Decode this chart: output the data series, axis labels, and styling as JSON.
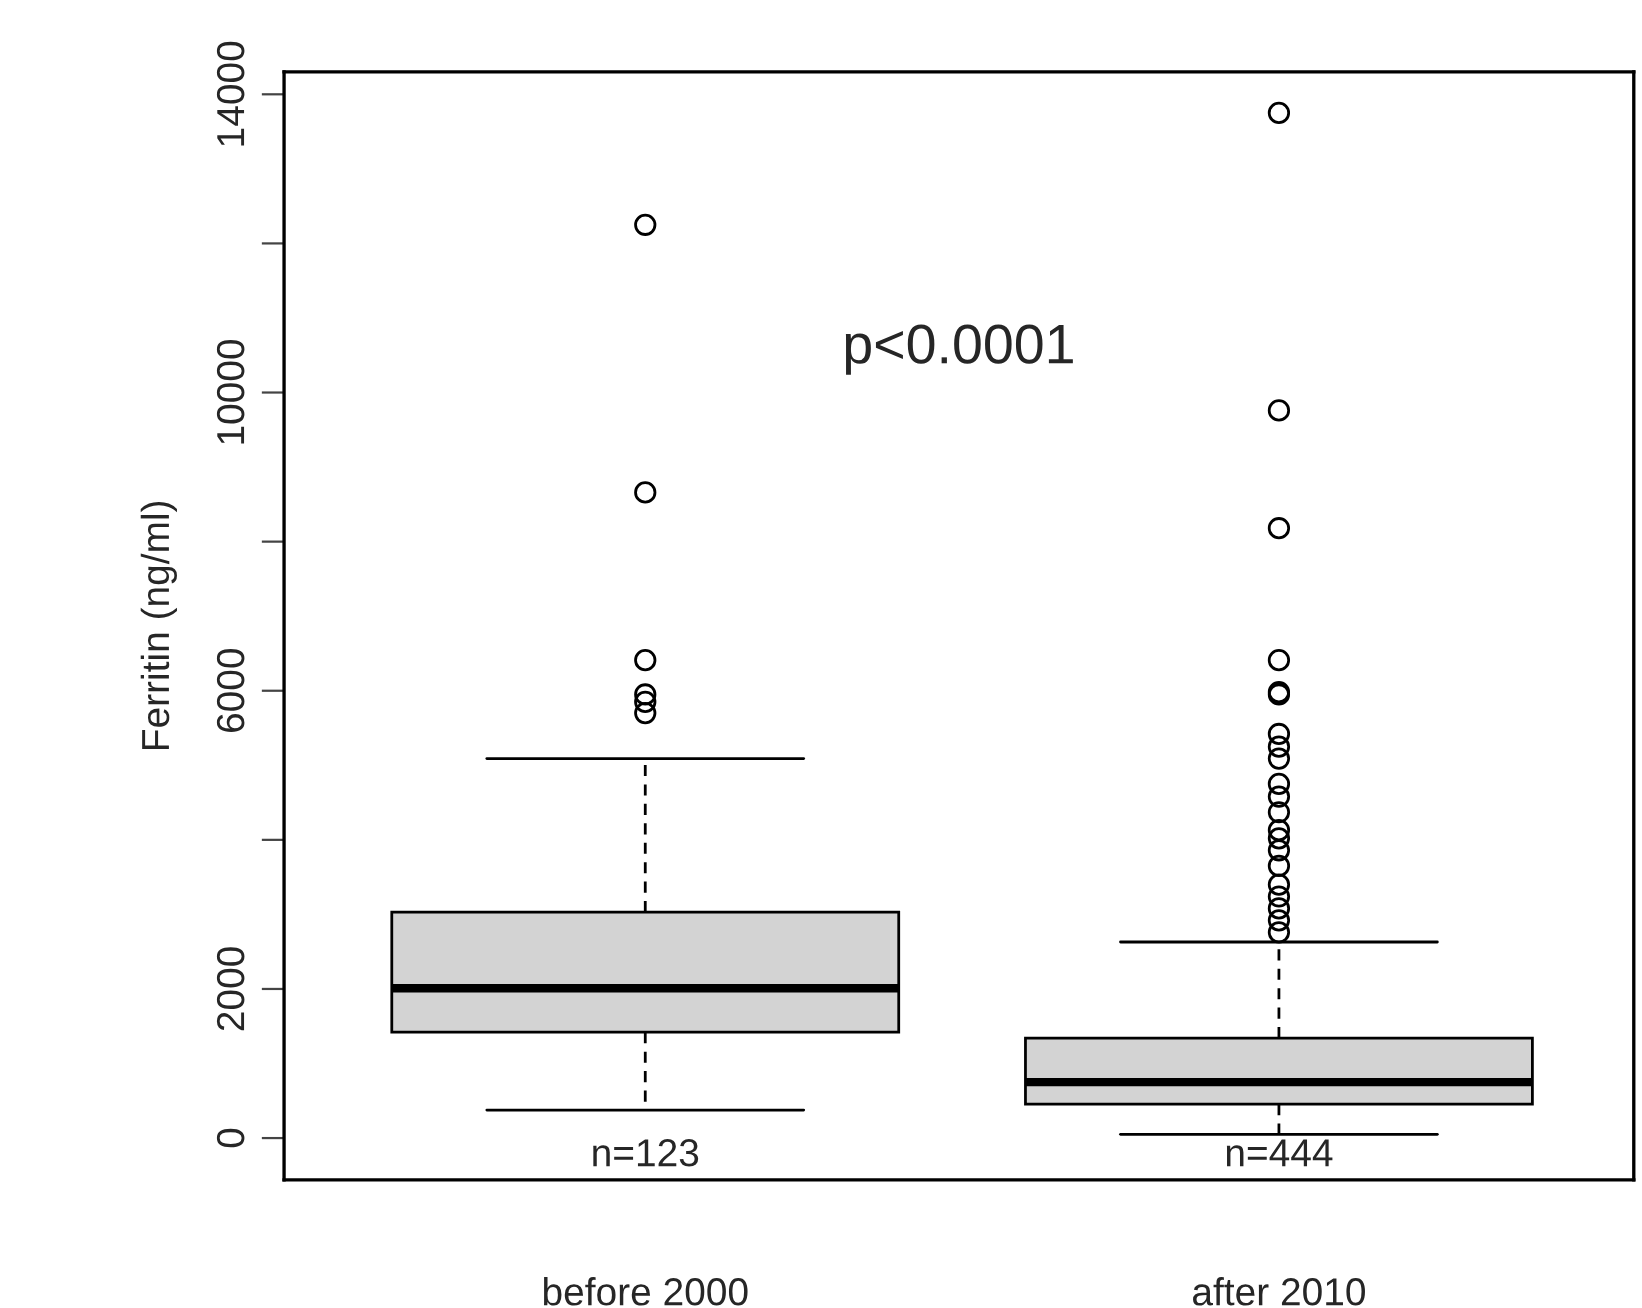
{
  "chart_data": {
    "type": "box",
    "ylabel": "Ferritin (ng/ml)",
    "categories": [
      "before 2000",
      "after 2010"
    ],
    "boxes": [
      {
        "low": 375,
        "q1": 1420,
        "median": 2010,
        "q3": 3030,
        "high": 5090,
        "outliers": [
          12250,
          8660,
          6410,
          5950,
          5850,
          5700
        ]
      },
      {
        "low": 50,
        "q1": 455,
        "median": 750,
        "q3": 1340,
        "high": 2630,
        "outliers": [
          13750,
          9760,
          8180,
          6410,
          5980,
          5950,
          5420,
          5250,
          5090,
          4750,
          4580,
          4370,
          4130,
          4020,
          3860,
          3650,
          3400,
          3240,
          3080,
          2920,
          2760
        ]
      }
    ],
    "color": "#d3d3d3",
    "marker": "circle",
    "ylim": [
      -560,
      14300
    ],
    "yticks": [
      0,
      2000,
      {
        "value": 4000,
        "label": null
      },
      6000,
      {
        "value": 8000,
        "label": null
      },
      10000,
      {
        "value": 12000,
        "label": null
      },
      14000
    ],
    "grid": false,
    "annotations": [
      "p<0.0001",
      "n=123",
      "n=444"
    ]
  }
}
